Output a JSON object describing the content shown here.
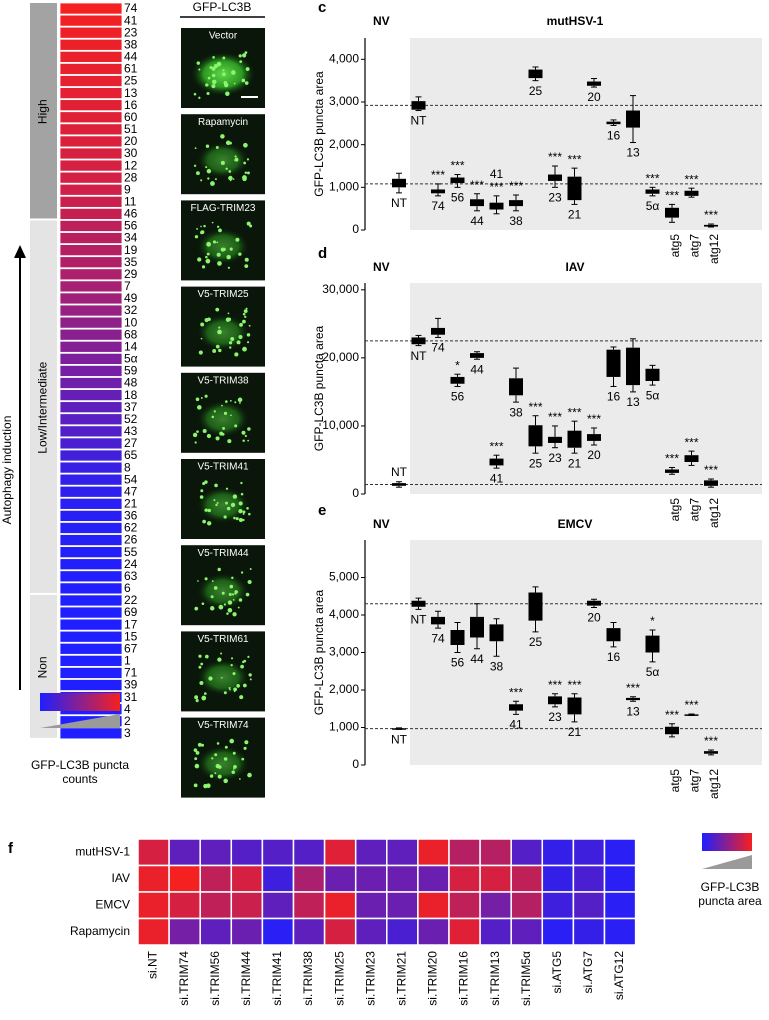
{
  "image_panel": {
    "title": "GFP-LC3B",
    "labels": [
      "Vector",
      "Rapamycin",
      "FLAG-TRIM23",
      "V5-TRIM25",
      "V5-TRIM38",
      "V5-TRIM41",
      "V5-TRIM44",
      "V5-TRIM61",
      "V5-TRIM74"
    ]
  },
  "chart_data": [
    {
      "type": "heatmap",
      "y_label": "Autophagy induction",
      "legend_title": "GFP-LC3B puncta counts",
      "colorscale": [
        "#1f1fff",
        "#f52020"
      ],
      "groups": [
        {
          "label": "High",
          "color": "#a3a3a3",
          "categories": [
            "74",
            "41",
            "23",
            "38",
            "44",
            "61",
            "25",
            "13",
            "16",
            "60",
            "51",
            "20",
            "30",
            "12",
            "28",
            "9",
            "11",
            "46"
          ],
          "values": [
            1.0,
            0.98,
            0.97,
            0.96,
            0.95,
            0.94,
            0.93,
            0.92,
            0.91,
            0.9,
            0.89,
            0.88,
            0.86,
            0.85,
            0.84,
            0.82,
            0.8,
            0.78
          ]
        },
        {
          "label": "Low/Intermediate",
          "color": "#e4e4e4",
          "categories": [
            "56",
            "34",
            "19",
            "35",
            "29",
            "7",
            "49",
            "32",
            "10",
            "68",
            "14",
            "5α",
            "59",
            "48",
            "18",
            "37",
            "52",
            "43",
            "27",
            "65",
            "8",
            "54",
            "47",
            "21",
            "36",
            "62",
            "26",
            "55",
            "24",
            "63",
            "6"
          ],
          "values": [
            0.74,
            0.72,
            0.7,
            0.68,
            0.66,
            0.63,
            0.6,
            0.56,
            0.53,
            0.5,
            0.47,
            0.44,
            0.41,
            0.37,
            0.33,
            0.3,
            0.27,
            0.24,
            0.2,
            0.16,
            0.12,
            0.09,
            0.07,
            0.05,
            0.04,
            0.03,
            0.03,
            0.02,
            0.02,
            0.01,
            0.01
          ]
        },
        {
          "label": "Non",
          "color": "#e4e4e4",
          "categories": [
            "22",
            "69",
            "17",
            "15",
            "67",
            "1",
            "71",
            "39",
            "31",
            "4",
            "2",
            "3"
          ],
          "values": [
            0,
            0,
            0,
            0,
            0,
            0,
            0,
            0,
            0,
            0,
            0,
            0
          ]
        }
      ]
    },
    {
      "type": "box",
      "panel_label": "c",
      "title": "mutHSV-1",
      "region_label": "NV",
      "y_label": "GFP-LC3B puncta area",
      "color": "#000000",
      "shade_color": "#ebebeb",
      "ylim": [
        0,
        4500
      ],
      "yticks": [
        0,
        {
          "value": 1000,
          "label": "1,000"
        },
        {
          "value": 2000,
          "label": "2,000"
        },
        {
          "value": 3000,
          "label": "3,000"
        },
        {
          "value": 4000,
          "label": "4,000"
        }
      ],
      "reference_lines": [
        2920,
        1080
      ],
      "categories": [
        "NT",
        "NT",
        "74",
        "56",
        "44",
        "41",
        "38",
        "25",
        "23",
        "21",
        "20",
        "16",
        "13",
        "5α",
        "atg5",
        "atg7",
        "atg12"
      ],
      "whisker_low": [
        870,
        2800,
        800,
        1000,
        450,
        380,
        450,
        3500,
        1000,
        600,
        3350,
        2450,
        2050,
        800,
        180,
        770,
        70
      ],
      "q1": [
        1000,
        2820,
        860,
        1100,
        560,
        480,
        560,
        3560,
        1150,
        700,
        3380,
        2480,
        2400,
        850,
        290,
        800,
        80
      ],
      "q3": [
        1200,
        3020,
        950,
        1230,
        720,
        640,
        700,
        3760,
        1300,
        1250,
        3480,
        2540,
        2800,
        950,
        520,
        920,
        120
      ],
      "whisker_high": [
        1330,
        3120,
        1080,
        1300,
        850,
        800,
        820,
        3820,
        1500,
        1450,
        3550,
        2580,
        3150,
        1000,
        600,
        980,
        140
      ],
      "annotations": [
        null,
        null,
        "***",
        "***",
        "***",
        "***",
        "***",
        null,
        "***",
        "***",
        null,
        null,
        null,
        "***",
        "***",
        "***",
        "***"
      ]
    },
    {
      "type": "box",
      "panel_label": "d",
      "title": "IAV",
      "region_label": "NV",
      "y_label": "GFP-LC3B puncta area",
      "color": "#000000",
      "shade_color": "#ebebeb",
      "ylim": [
        0,
        31000
      ],
      "yticks": [
        0,
        {
          "value": 10000,
          "label": "10,000"
        },
        {
          "value": 20000,
          "label": "20,000"
        },
        {
          "value": 30000,
          "label": "30,000"
        }
      ],
      "reference_lines": [
        22500,
        1400
      ],
      "categories": [
        "NT",
        "NT",
        "74",
        "56",
        "44",
        "41",
        "38",
        "25",
        "23",
        "21",
        "20",
        "16",
        "13",
        "5α",
        "atg5",
        "atg7",
        "atg12"
      ],
      "whisker_low": [
        1000,
        21800,
        23000,
        15800,
        19800,
        3800,
        13500,
        6000,
        6800,
        6000,
        7200,
        15800,
        15000,
        16000,
        2900,
        4200,
        1000
      ],
      "q1": [
        1200,
        22000,
        23400,
        16200,
        20000,
        4200,
        14500,
        7000,
        7500,
        6800,
        7800,
        17200,
        16000,
        16600,
        3100,
        4700,
        1200
      ],
      "q3": [
        1600,
        23000,
        24400,
        17200,
        20700,
        5200,
        17000,
        10100,
        8400,
        9300,
        8800,
        21200,
        21500,
        18400,
        3600,
        5700,
        2000
      ],
      "whisker_high": [
        1800,
        23300,
        25800,
        17600,
        20900,
        5700,
        18500,
        11500,
        10000,
        10700,
        9700,
        21600,
        22800,
        18900,
        3900,
        6300,
        2200
      ],
      "annotations": [
        null,
        null,
        null,
        "*",
        null,
        "***",
        null,
        "***",
        "***",
        "***",
        "***",
        null,
        null,
        null,
        "***",
        "***",
        "***"
      ]
    },
    {
      "type": "box",
      "panel_label": "e",
      "title": "EMCV",
      "region_label": "NV",
      "y_label": "GFP-LC3B puncta area",
      "color": "#000000",
      "shade_color": "#ebebeb",
      "ylim": [
        0,
        6000
      ],
      "yticks": [
        0,
        {
          "value": 1000,
          "label": "1,000"
        },
        {
          "value": 2000,
          "label": "2,000"
        },
        {
          "value": 3000,
          "label": "3,000"
        },
        {
          "value": 4000,
          "label": "4,000"
        },
        {
          "value": 5000,
          "label": "5,000"
        }
      ],
      "reference_lines": [
        4300,
        970
      ],
      "categories": [
        "NT",
        "NT",
        "74",
        "56",
        "44",
        "38",
        "41",
        "25",
        "23",
        "21",
        "20",
        "16",
        "13",
        "5α",
        "atg5",
        "atg7",
        "atg12"
      ],
      "whisker_low": [
        950,
        4150,
        3650,
        3000,
        3100,
        2900,
        1350,
        3550,
        1550,
        1150,
        4200,
        3150,
        1700,
        2750,
        750,
        1320,
        270
      ],
      "q1": [
        960,
        4220,
        3750,
        3200,
        3400,
        3300,
        1450,
        3850,
        1620,
        1350,
        4250,
        3300,
        1730,
        3000,
        820,
        1330,
        300
      ],
      "q3": [
        980,
        4380,
        3950,
        3600,
        3950,
        3750,
        1620,
        4600,
        1830,
        1800,
        4380,
        3650,
        1790,
        3450,
        1020,
        1350,
        370
      ],
      "whisker_high": [
        990,
        4450,
        4100,
        3800,
        4300,
        3900,
        1700,
        4750,
        1900,
        1900,
        4420,
        3800,
        1820,
        3600,
        1100,
        1360,
        400
      ],
      "annotations": [
        null,
        null,
        null,
        null,
        null,
        null,
        "***",
        null,
        "***",
        "***",
        null,
        null,
        "***",
        "*",
        "***",
        "***",
        "***"
      ]
    },
    {
      "type": "heatmap",
      "panel_label": "f",
      "legend_title": "GFP-LC3B puncta area",
      "colorscale": [
        "#1f1fff",
        "#f52020"
      ],
      "rows": [
        "mutHSV-1",
        "IAV",
        "EMCV",
        "Rapamycin"
      ],
      "columns": [
        "si.NT",
        "si.TRIM74",
        "si.TRIM56",
        "si.TRIM44",
        "si.TRIM41",
        "si.TRIM38",
        "si.TRIM25",
        "si.TRIM23",
        "si.TRIM21",
        "si.TRIM20",
        "si.TRIM16",
        "si.TRIM13",
        "si.TRIM5α",
        "si.ATG5",
        "si.ATG7",
        "si.ATG12"
      ],
      "values": [
        [
          0.85,
          0.3,
          0.3,
          0.25,
          0.25,
          0.25,
          0.9,
          0.3,
          0.3,
          0.95,
          0.7,
          0.7,
          0.25,
          0.1,
          0.15,
          0.05
        ],
        [
          0.95,
          1.0,
          0.75,
          0.85,
          0.15,
          0.65,
          0.35,
          0.35,
          0.35,
          0.35,
          0.85,
          0.85,
          0.75,
          0.1,
          0.2,
          0.05
        ],
        [
          0.95,
          0.85,
          0.75,
          0.8,
          0.3,
          0.75,
          0.95,
          0.35,
          0.35,
          0.95,
          0.75,
          0.4,
          0.7,
          0.15,
          0.25,
          0.05
        ],
        [
          0.95,
          0.4,
          0.3,
          0.35,
          0.05,
          0.3,
          0.85,
          0.3,
          0.2,
          0.35,
          0.9,
          0.25,
          0.3,
          0.05,
          0.1,
          0.05
        ]
      ]
    }
  ]
}
